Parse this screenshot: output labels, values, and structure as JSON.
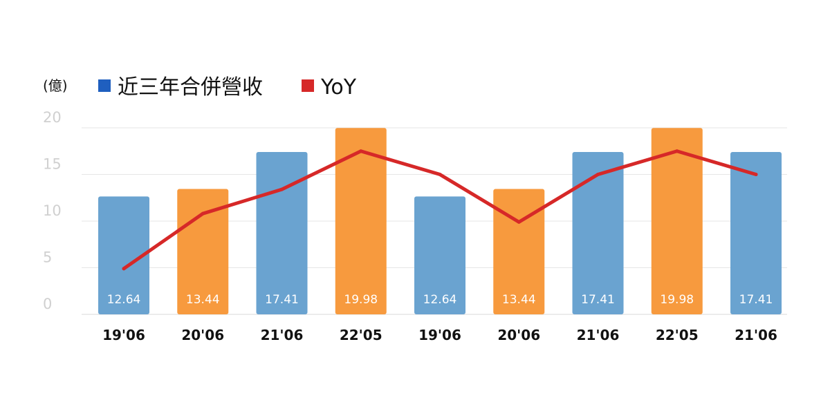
{
  "chart_data": {
    "type": "bar",
    "unit_label": "(億)",
    "categories": [
      "19'06",
      "20'06",
      "21'06",
      "22'05",
      "19'06",
      "20'06",
      "21'06",
      "22'05",
      "21'06"
    ],
    "series": [
      {
        "name": "近三年合併營收",
        "type": "bar",
        "legend_color": "#1f5fbf",
        "values": [
          12.64,
          13.44,
          17.41,
          19.98,
          12.64,
          13.44,
          17.41,
          19.98,
          17.41
        ],
        "bar_colors": [
          "#6aa3d0",
          "#f79a3e",
          "#6aa3d0",
          "#f79a3e",
          "#6aa3d0",
          "#f79a3e",
          "#6aa3d0",
          "#f79a3e",
          "#6aa3d0"
        ],
        "value_labels": [
          "12.64",
          "13.44",
          "17.41",
          "19.98",
          "12.64",
          "13.44",
          "17.41",
          "19.98",
          "17.41"
        ]
      },
      {
        "name": "YoY",
        "type": "line",
        "color": "#d62828",
        "values": [
          4.9,
          10.8,
          13.4,
          17.5,
          15.0,
          9.9,
          15.0,
          17.5,
          15.0
        ]
      }
    ],
    "yticks": [
      "0",
      "5",
      "10",
      "15",
      "20"
    ],
    "ylim": [
      0,
      20
    ],
    "grid": true,
    "legend_position": "top-left"
  }
}
